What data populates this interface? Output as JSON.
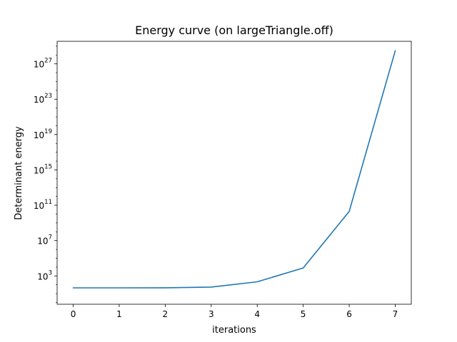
{
  "chart_data": {
    "type": "line",
    "title": "Energy curve (on largeTriangle.off)",
    "xlabel": "iterations",
    "ylabel": "Determinant energy",
    "yscale": "log",
    "grid": false,
    "x": [
      0,
      1,
      2,
      3,
      4,
      5,
      6,
      7
    ],
    "series": [
      {
        "color": "#1f77b4",
        "values": [
          45,
          45,
          46,
          55,
          220,
          8000.0,
          20000000000.0,
          3e+28
        ]
      }
    ],
    "xticks": [
      "0",
      "1",
      "2",
      "3",
      "4",
      "5",
      "6",
      "7"
    ],
    "yticks": [
      {
        "base": "10",
        "exp": "3",
        "value": 1000.0
      },
      {
        "base": "10",
        "exp": "7",
        "value": 10000000.0
      },
      {
        "base": "10",
        "exp": "11",
        "value": 100000000000.0
      },
      {
        "base": "10",
        "exp": "15",
        "value": 1000000000000000.0
      },
      {
        "base": "10",
        "exp": "19",
        "value": 1e+19
      },
      {
        "base": "10",
        "exp": "23",
        "value": 1e+23
      },
      {
        "base": "10",
        "exp": "27",
        "value": 1e+27
      }
    ],
    "xlim": [
      -0.35,
      7.35
    ],
    "ylim_log10": [
      -0.2,
      29.55
    ]
  }
}
